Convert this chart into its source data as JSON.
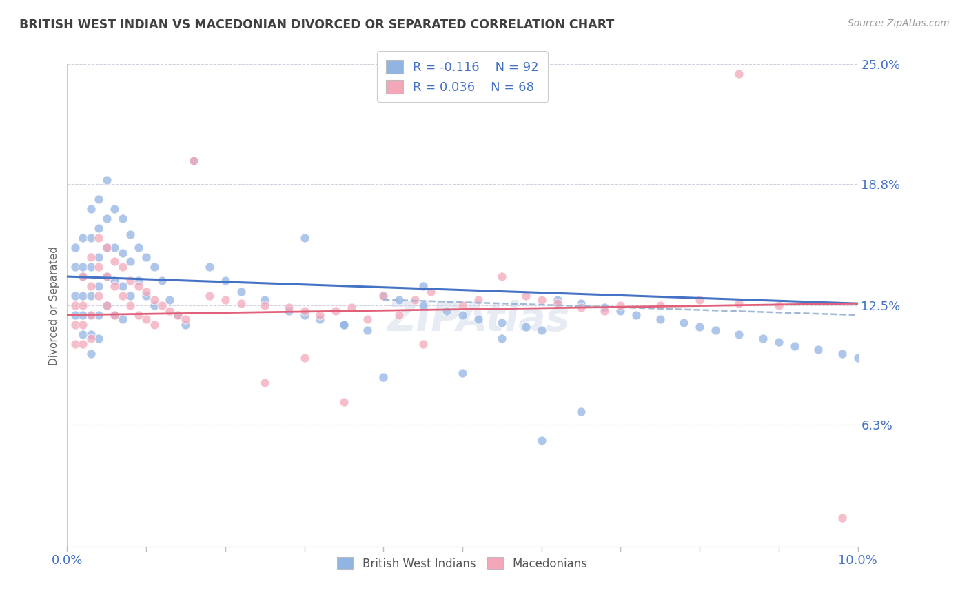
{
  "title": "BRITISH WEST INDIAN VS MACEDONIAN DIVORCED OR SEPARATED CORRELATION CHART",
  "source_text": "Source: ZipAtlas.com",
  "ylabel": "Divorced or Separated",
  "xlim": [
    0.0,
    0.1
  ],
  "ylim": [
    0.0,
    0.25
  ],
  "yticks": [
    0.0,
    0.063,
    0.125,
    0.188,
    0.25
  ],
  "ytick_labels": [
    "",
    "6.3%",
    "12.5%",
    "18.8%",
    "25.0%"
  ],
  "blue_color": "#92b4e3",
  "pink_color": "#f4a7b9",
  "blue_line_color": "#4472c4",
  "pink_line_color": "#e0607a",
  "blue_dash_color": "#a0b8d8",
  "grid_color": "#d0d0e0",
  "axis_label_color": "#4472c4",
  "title_color": "#404040",
  "source_color": "#999999",
  "legend_r1": "R = -0.116",
  "legend_n1": "N = 92",
  "legend_r2": "R = 0.036",
  "legend_n2": "N = 68",
  "bwi_x": [
    0.001,
    0.001,
    0.001,
    0.001,
    0.002,
    0.002,
    0.002,
    0.002,
    0.002,
    0.002,
    0.003,
    0.003,
    0.003,
    0.003,
    0.003,
    0.003,
    0.003,
    0.004,
    0.004,
    0.004,
    0.004,
    0.004,
    0.004,
    0.005,
    0.005,
    0.005,
    0.005,
    0.005,
    0.006,
    0.006,
    0.006,
    0.006,
    0.007,
    0.007,
    0.007,
    0.007,
    0.008,
    0.008,
    0.008,
    0.009,
    0.009,
    0.01,
    0.01,
    0.011,
    0.011,
    0.012,
    0.013,
    0.014,
    0.015,
    0.016,
    0.018,
    0.02,
    0.022,
    0.025,
    0.028,
    0.03,
    0.032,
    0.035,
    0.038,
    0.04,
    0.042,
    0.045,
    0.048,
    0.05,
    0.052,
    0.055,
    0.058,
    0.06,
    0.062,
    0.065,
    0.068,
    0.07,
    0.072,
    0.075,
    0.078,
    0.08,
    0.082,
    0.085,
    0.088,
    0.09,
    0.092,
    0.095,
    0.098,
    0.1,
    0.03,
    0.045,
    0.055,
    0.065,
    0.06,
    0.05,
    0.04,
    0.035
  ],
  "bwi_y": [
    0.13,
    0.145,
    0.155,
    0.12,
    0.16,
    0.145,
    0.13,
    0.12,
    0.11,
    0.14,
    0.175,
    0.16,
    0.145,
    0.13,
    0.12,
    0.11,
    0.1,
    0.18,
    0.165,
    0.15,
    0.135,
    0.12,
    0.108,
    0.19,
    0.17,
    0.155,
    0.14,
    0.125,
    0.175,
    0.155,
    0.138,
    0.12,
    0.17,
    0.152,
    0.135,
    0.118,
    0.162,
    0.148,
    0.13,
    0.155,
    0.138,
    0.15,
    0.13,
    0.145,
    0.125,
    0.138,
    0.128,
    0.12,
    0.115,
    0.2,
    0.145,
    0.138,
    0.132,
    0.128,
    0.122,
    0.12,
    0.118,
    0.115,
    0.112,
    0.13,
    0.128,
    0.125,
    0.122,
    0.12,
    0.118,
    0.116,
    0.114,
    0.112,
    0.128,
    0.126,
    0.124,
    0.122,
    0.12,
    0.118,
    0.116,
    0.114,
    0.112,
    0.11,
    0.108,
    0.106,
    0.104,
    0.102,
    0.1,
    0.098,
    0.16,
    0.135,
    0.108,
    0.07,
    0.055,
    0.09,
    0.088,
    0.115
  ],
  "mac_x": [
    0.001,
    0.001,
    0.001,
    0.002,
    0.002,
    0.002,
    0.002,
    0.003,
    0.003,
    0.003,
    0.003,
    0.004,
    0.004,
    0.004,
    0.005,
    0.005,
    0.005,
    0.006,
    0.006,
    0.006,
    0.007,
    0.007,
    0.008,
    0.008,
    0.009,
    0.009,
    0.01,
    0.01,
    0.011,
    0.011,
    0.012,
    0.013,
    0.014,
    0.015,
    0.016,
    0.018,
    0.02,
    0.022,
    0.025,
    0.028,
    0.03,
    0.032,
    0.034,
    0.036,
    0.038,
    0.04,
    0.042,
    0.044,
    0.046,
    0.05,
    0.052,
    0.055,
    0.058,
    0.06,
    0.062,
    0.065,
    0.068,
    0.07,
    0.075,
    0.08,
    0.085,
    0.09,
    0.03,
    0.025,
    0.035,
    0.045,
    0.085,
    0.098
  ],
  "mac_y": [
    0.125,
    0.115,
    0.105,
    0.14,
    0.125,
    0.115,
    0.105,
    0.15,
    0.135,
    0.12,
    0.108,
    0.16,
    0.145,
    0.13,
    0.155,
    0.14,
    0.125,
    0.148,
    0.135,
    0.12,
    0.145,
    0.13,
    0.138,
    0.125,
    0.135,
    0.12,
    0.132,
    0.118,
    0.128,
    0.115,
    0.125,
    0.122,
    0.12,
    0.118,
    0.2,
    0.13,
    0.128,
    0.126,
    0.125,
    0.124,
    0.122,
    0.12,
    0.122,
    0.124,
    0.118,
    0.13,
    0.12,
    0.128,
    0.132,
    0.125,
    0.128,
    0.14,
    0.13,
    0.128,
    0.126,
    0.124,
    0.122,
    0.125,
    0.125,
    0.128,
    0.126,
    0.125,
    0.098,
    0.085,
    0.075,
    0.105,
    0.245,
    0.015
  ],
  "blue_trend": [
    0.0,
    0.1
  ],
  "blue_trend_y": [
    0.14,
    0.126
  ],
  "pink_trend": [
    0.0,
    0.1
  ],
  "pink_trend_y": [
    0.12,
    0.126
  ],
  "blue_dash_trend": [
    0.04,
    0.1
  ],
  "blue_dash_trend_y": [
    0.128,
    0.12
  ]
}
